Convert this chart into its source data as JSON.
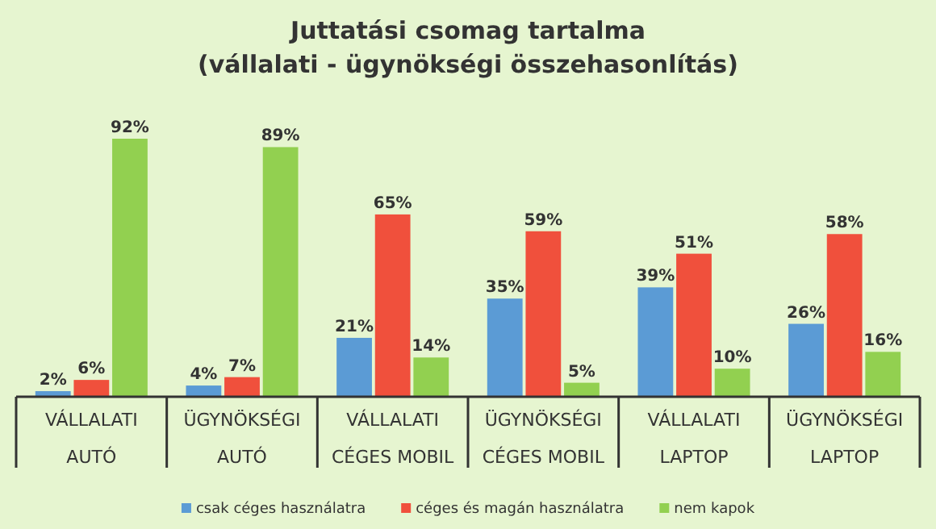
{
  "chart_data": {
    "type": "bar",
    "title": "Juttatási csomag tartalma\n(vállalati - ügynökségi összehasonlítás)",
    "categories": [
      "VÁLLALATI\nAUTÓ",
      "ÜGYNÖKSÉGI\nAUTÓ",
      "VÁLLALATI\nCÉGES MOBIL",
      "ÜGYNÖKSÉGI\nCÉGES MOBIL",
      "VÁLLALATI\nLAPTOP",
      "ÜGYNÖKSÉGI\nLAPTOP"
    ],
    "series": [
      {
        "name": "csak céges használatra",
        "color": "#5b9bd5",
        "values": [
          2,
          4,
          21,
          35,
          39,
          26
        ],
        "value_labels": [
          "2%",
          "4%",
          "21%",
          "35%",
          "39%",
          "26%"
        ]
      },
      {
        "name": "céges és magán használatra",
        "color": "#f0503c",
        "values": [
          6,
          7,
          65,
          59,
          51,
          58
        ],
        "value_labels": [
          "6%",
          "7%",
          "65%",
          "59%",
          "51%",
          "58%"
        ]
      },
      {
        "name": "nem kapok",
        "color": "#92d050",
        "values": [
          92,
          89,
          14,
          5,
          10,
          16
        ],
        "value_labels": [
          "92%",
          "89%",
          "14%",
          "5%",
          "10%",
          "16%"
        ]
      }
    ],
    "tick_labels": "x",
    "legend": "bottom"
  }
}
